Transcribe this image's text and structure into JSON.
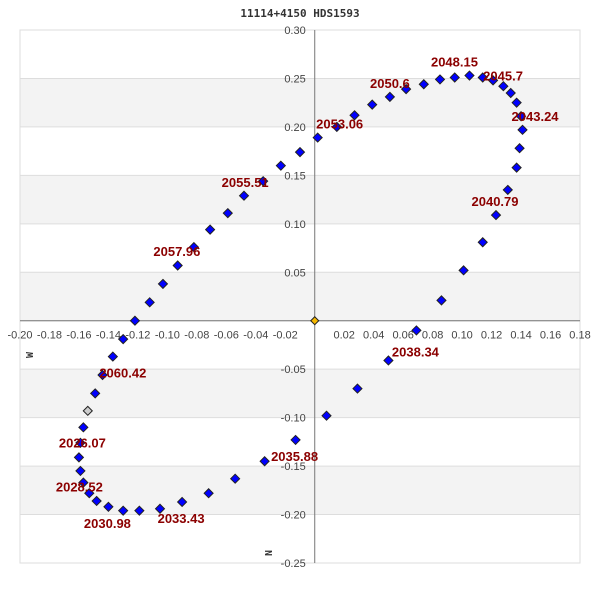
{
  "chart_data": {
    "type": "scatter",
    "title": "11114+4150 HDS1593",
    "xlim": [
      -0.2,
      0.18
    ],
    "ylim": [
      -0.25,
      0.3
    ],
    "x_ticks": [
      "-0.20",
      "-0.18",
      "-0.16",
      "-0.14",
      "-0.12",
      "-0.10",
      "-0.08",
      "-0.06",
      "-0.04",
      "-0.02",
      "0.02",
      "0.04",
      "0.06",
      "0.08",
      "0.10",
      "0.12",
      "0.14",
      "0.16",
      "0.18"
    ],
    "y_ticks": [
      "0.30",
      "0.25",
      "0.20",
      "0.15",
      "0.10",
      "0.05",
      "-0.05",
      "-0.10",
      "-0.15",
      "-0.20",
      "-0.25"
    ],
    "grid": true,
    "direction_labels": {
      "west": "W",
      "north": "N"
    },
    "colors": {
      "point": "#0000ff",
      "current_point": "#cccccc",
      "origin": "#f5b800",
      "annotation": "#8b0000",
      "band": "#f3f3f3"
    },
    "origin": [
      0,
      0
    ],
    "current_position": [
      -0.154,
      -0.093
    ],
    "points": [
      [
        -0.122,
        0.0
      ],
      [
        -0.112,
        0.019
      ],
      [
        -0.103,
        0.038
      ],
      [
        -0.093,
        0.057
      ],
      [
        -0.082,
        0.076
      ],
      [
        -0.071,
        0.094
      ],
      [
        -0.059,
        0.111
      ],
      [
        -0.048,
        0.129
      ],
      [
        -0.035,
        0.144
      ],
      [
        -0.023,
        0.16
      ],
      [
        -0.01,
        0.174
      ],
      [
        0.002,
        0.189
      ],
      [
        0.015,
        0.2
      ],
      [
        0.027,
        0.212
      ],
      [
        0.039,
        0.223
      ],
      [
        0.051,
        0.231
      ],
      [
        0.062,
        0.239
      ],
      [
        0.074,
        0.244
      ],
      [
        0.085,
        0.249
      ],
      [
        0.095,
        0.251
      ],
      [
        0.105,
        0.253
      ],
      [
        0.114,
        0.251
      ],
      [
        0.121,
        0.248
      ],
      [
        0.128,
        0.242
      ],
      [
        0.133,
        0.235
      ],
      [
        0.137,
        0.225
      ],
      [
        0.14,
        0.211
      ],
      [
        0.141,
        0.197
      ],
      [
        0.139,
        0.178
      ],
      [
        0.137,
        0.158
      ],
      [
        0.131,
        0.135
      ],
      [
        0.123,
        0.109
      ],
      [
        0.114,
        0.081
      ],
      [
        0.101,
        0.052
      ],
      [
        0.086,
        0.021
      ],
      [
        0.069,
        -0.01
      ],
      [
        0.05,
        -0.041
      ],
      [
        0.029,
        -0.07
      ],
      [
        0.008,
        -0.098
      ],
      [
        -0.013,
        -0.123
      ],
      [
        -0.034,
        -0.145
      ],
      [
        -0.054,
        -0.163
      ],
      [
        -0.072,
        -0.178
      ],
      [
        -0.09,
        -0.187
      ],
      [
        -0.105,
        -0.194
      ],
      [
        -0.119,
        -0.196
      ],
      [
        -0.13,
        -0.196
      ],
      [
        -0.14,
        -0.192
      ],
      [
        -0.148,
        -0.186
      ],
      [
        -0.153,
        -0.178
      ],
      [
        -0.157,
        -0.167
      ],
      [
        -0.159,
        -0.155
      ],
      [
        -0.16,
        -0.141
      ],
      [
        -0.159,
        -0.126
      ],
      [
        -0.157,
        -0.11
      ],
      [
        -0.149,
        -0.075
      ],
      [
        -0.144,
        -0.056
      ],
      [
        -0.137,
        -0.037
      ],
      [
        -0.13,
        -0.019
      ]
    ],
    "annotations": [
      {
        "text": "2048.15",
        "point": 20
      },
      {
        "text": "2045.7",
        "point": 22
      },
      {
        "text": "2043.24",
        "point": 26
      },
      {
        "text": "2040.79",
        "point": 31
      },
      {
        "text": "2038.34",
        "point": 35
      },
      {
        "text": "2035.88",
        "point": 39
      },
      {
        "text": "2033.43",
        "point": 43
      },
      {
        "text": "2030.98",
        "point": 47
      },
      {
        "text": "2028.52",
        "point": 50
      },
      {
        "text": "2026.07",
        "point": 54
      },
      {
        "text": "2060.42",
        "point": 57
      },
      {
        "text": "2057.96",
        "point": 4
      },
      {
        "text": "2055.51",
        "point": 8
      },
      {
        "text": "2053.06",
        "point": 11
      },
      {
        "text": "2050.6",
        "point": 15
      }
    ]
  }
}
